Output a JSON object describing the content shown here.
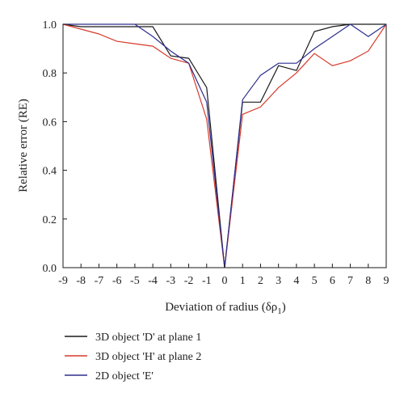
{
  "chart_data": {
    "type": "line",
    "title": "",
    "xlabel": "Deviation of radius (δρ",
    "xlabel_sub": "1",
    "xlabel_close": ")",
    "ylabel": "Relative error (RE)",
    "xlim": [
      -9,
      9
    ],
    "ylim": [
      0,
      1.0
    ],
    "x_ticks": [
      -9,
      -8,
      -7,
      -6,
      -5,
      -4,
      -3,
      -2,
      -1,
      0,
      1,
      2,
      3,
      4,
      5,
      6,
      7,
      8,
      9
    ],
    "x_tick_labels": [
      "-9",
      "-8",
      "-7",
      "-6",
      "-5",
      "-4",
      "-3",
      "-2",
      "-1",
      "0",
      "1",
      "2",
      "3",
      "4",
      "5",
      "6",
      "7",
      "8",
      "9"
    ],
    "y_ticks": [
      0,
      0.2,
      0.4,
      0.6,
      0.8,
      1.0
    ],
    "y_tick_labels": [
      "0.0",
      "0.2",
      "0.4",
      "0.6",
      "0.8",
      "1.0"
    ],
    "grid": false,
    "legend_position": "bottom",
    "x": [
      -9,
      -8,
      -7,
      -6,
      -5,
      -4,
      -3,
      -2,
      -1,
      0,
      1,
      2,
      3,
      4,
      5,
      6,
      7,
      8,
      9
    ],
    "series": [
      {
        "name": "3D object 'D' at plane 1",
        "color": "#1a1a1a",
        "values": [
          1.0,
          0.99,
          0.99,
          0.99,
          0.99,
          0.99,
          0.87,
          0.86,
          0.74,
          0.0,
          0.68,
          0.68,
          0.83,
          0.81,
          0.97,
          0.99,
          1.0,
          1.0,
          1.0
        ]
      },
      {
        "name": "3D object 'H' at plane 2",
        "color": "#d63a2a",
        "values": [
          1.0,
          0.98,
          0.96,
          0.93,
          0.92,
          0.91,
          0.86,
          0.84,
          0.61,
          0.0,
          0.63,
          0.66,
          0.74,
          0.8,
          0.88,
          0.83,
          0.85,
          0.89,
          1.0
        ]
      },
      {
        "name": "2D object 'E'",
        "color": "#2e2e8f",
        "values": [
          1.0,
          1.0,
          1.0,
          1.0,
          1.0,
          0.95,
          0.89,
          0.84,
          0.68,
          0.0,
          0.69,
          0.79,
          0.84,
          0.84,
          0.9,
          0.95,
          1.0,
          0.95,
          1.0
        ]
      }
    ]
  }
}
